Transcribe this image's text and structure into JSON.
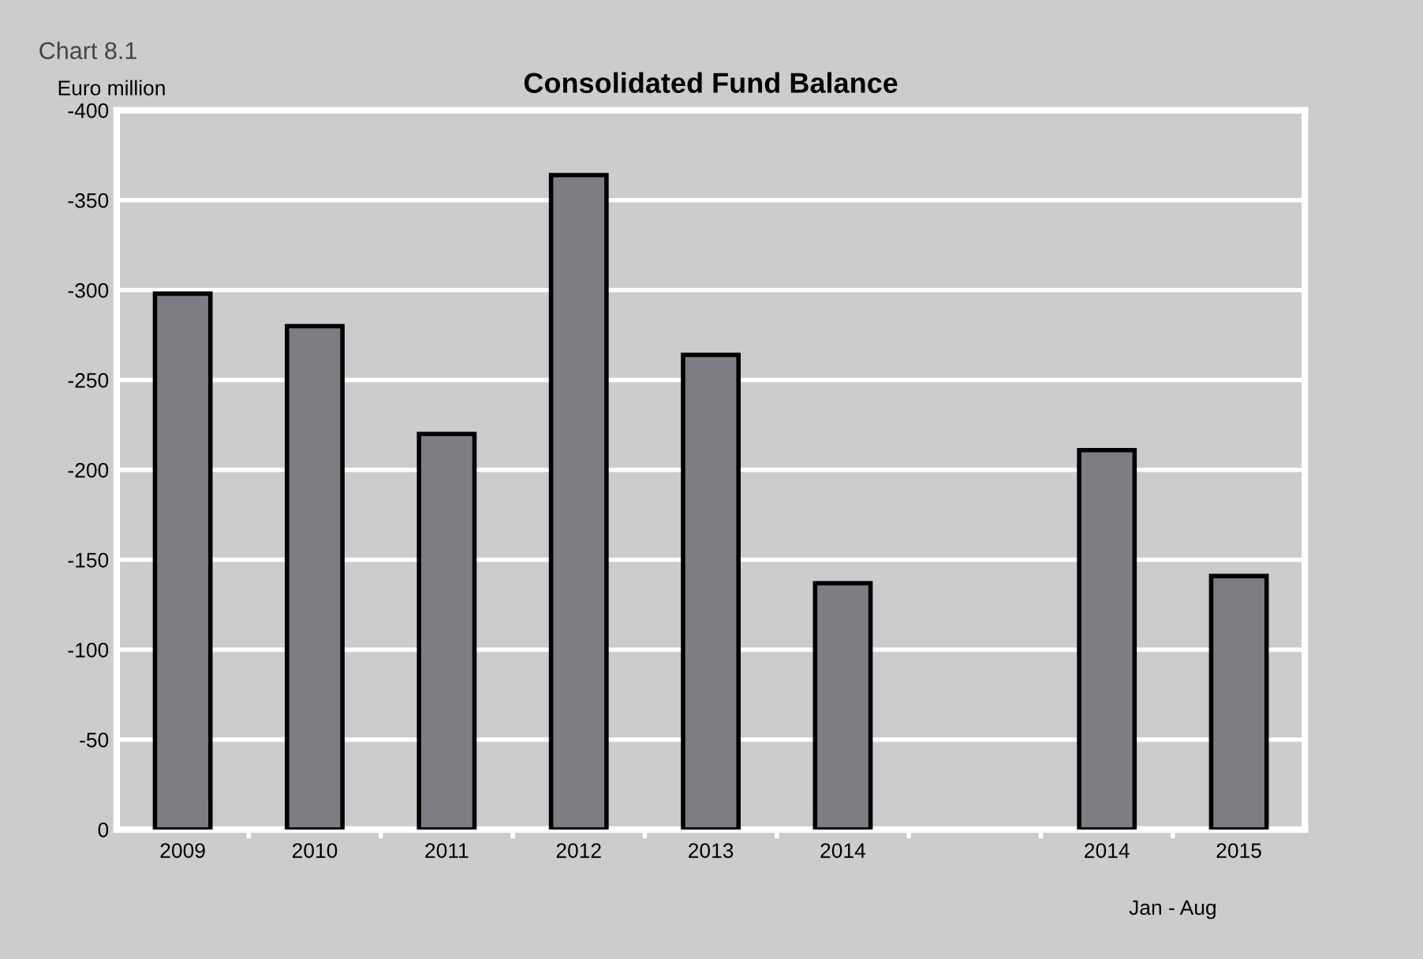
{
  "chart_data": {
    "type": "bar",
    "title": "Consolidated Fund Balance",
    "ylabel": "Euro million",
    "annotations": [
      "Chart 8.1",
      "Jan - Aug"
    ],
    "categories": [
      "2009",
      "2010",
      "2011",
      "2012",
      "2013",
      "2014",
      null,
      "2014",
      "2015"
    ],
    "values": [
      -298,
      -280,
      -220,
      -364,
      -264,
      -137,
      null,
      -211,
      -141
    ],
    "color": "#7d7e83",
    "ylim": [
      0,
      -400
    ],
    "yticks": [
      0,
      -50,
      -100,
      -150,
      -200,
      -250,
      -300,
      -350,
      -400
    ],
    "grid": "y",
    "legend": false
  }
}
